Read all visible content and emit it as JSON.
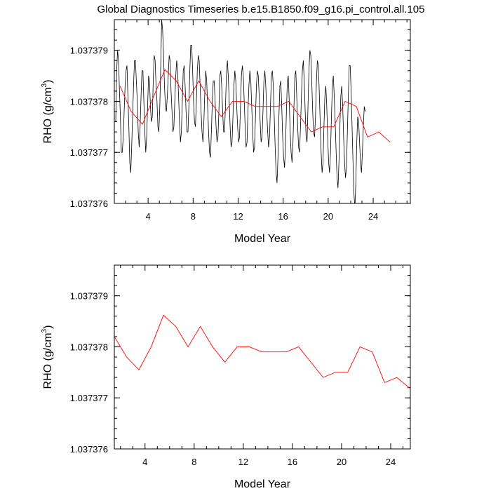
{
  "title": "Global Diagnostics Timeseries b.e15.B1850.f09_g16.pi_control.all.105",
  "chart_data": [
    {
      "type": "line",
      "xlabel": "Model Year",
      "ylabel_main": "RHO (g/cm",
      "ylabel_sup": "3",
      "ylabel_close": ")",
      "xlim": [
        1,
        27.3
      ],
      "ylim": [
        1.037376,
        1.0373796
      ],
      "xticks": [
        4,
        8,
        12,
        16,
        20,
        24
      ],
      "yticks": [
        1.037376,
        1.037377,
        1.037378,
        1.037379
      ],
      "ytick_labels": [
        "1.037376",
        "1.037377",
        "1.037378",
        "1.037379"
      ],
      "monthly_series": {
        "color": "#000000",
        "x_start": 1.04,
        "x_step": 0.0833333,
        "values": [
          1.0373776,
          1.0373776,
          1.0373786,
          1.037379,
          1.0373788,
          1.0373782,
          1.0373777,
          1.037377,
          1.037377,
          1.0373773,
          1.0373778,
          1.0373783,
          1.0373786,
          1.0373787,
          1.0373781,
          1.0373775,
          1.0373768,
          1.0373766,
          1.0373771,
          1.0373777,
          1.0373783,
          1.0373788,
          1.0373788,
          1.0373784,
          1.037378,
          1.0373774,
          1.0373771,
          1.0373775,
          1.0373781,
          1.0373786,
          1.0373786,
          1.037378,
          1.0373774,
          1.037377,
          1.0373773,
          1.0373779,
          1.0373785,
          1.0373784,
          1.0373779,
          1.0373776,
          1.0373777,
          1.0373784,
          1.0373789,
          1.0373788,
          1.0373783,
          1.037378,
          1.0373775,
          1.0373774,
          1.0373779,
          1.0373787,
          1.0373796,
          1.0373794,
          1.0373789,
          1.0373783,
          1.0373779,
          1.0373778,
          1.0373781,
          1.0373785,
          1.0373789,
          1.0373788,
          1.0373782,
          1.0373778,
          1.0373774,
          1.0373775,
          1.037378,
          1.0373785,
          1.0373788,
          1.0373786,
          1.0373781,
          1.0373776,
          1.0373772,
          1.0373774,
          1.037378,
          1.0373786,
          1.0373787,
          1.0373783,
          1.0373778,
          1.0373774,
          1.0373774,
          1.0373779,
          1.0373786,
          1.0373791,
          1.0373791,
          1.0373786,
          1.037378,
          1.0373776,
          1.0373775,
          1.037378,
          1.0373786,
          1.0373789,
          1.0373788,
          1.0373783,
          1.0373778,
          1.0373774,
          1.0373772,
          1.0373776,
          1.0373782,
          1.0373786,
          1.0373784,
          1.0373779,
          1.0373774,
          1.037377,
          1.0373769,
          1.0373774,
          1.037378,
          1.0373784,
          1.0373784,
          1.037378,
          1.0373775,
          1.0373772,
          1.0373773,
          1.0373778,
          1.0373785,
          1.0373786,
          1.0373783,
          1.0373778,
          1.0373774,
          1.0373774,
          1.0373779,
          1.0373785,
          1.0373788,
          1.0373785,
          1.037378,
          1.0373775,
          1.0373771,
          1.0373772,
          1.0373777,
          1.0373783,
          1.0373786,
          1.0373784,
          1.0373779,
          1.0373775,
          1.0373772,
          1.0373773,
          1.0373779,
          1.0373785,
          1.0373787,
          1.0373785,
          1.037378,
          1.0373775,
          1.0373771,
          1.0373772,
          1.0373778,
          1.0373783,
          1.0373786,
          1.0373784,
          1.0373779,
          1.0373774,
          1.037377,
          1.0373771,
          1.0373777,
          1.0373783,
          1.0373786,
          1.0373785,
          1.0373781,
          1.0373776,
          1.0373772,
          1.0373773,
          1.0373778,
          1.0373784,
          1.0373786,
          1.0373783,
          1.0373778,
          1.0373774,
          1.0373771,
          1.0373773,
          1.0373779,
          1.0373785,
          1.0373786,
          1.0373783,
          1.0373777,
          1.0373771,
          1.0373766,
          1.0373764,
          1.0373769,
          1.0373777,
          1.0373783,
          1.0373784,
          1.0373779,
          1.0373773,
          1.0373769,
          1.0373767,
          1.0373771,
          1.0373778,
          1.0373784,
          1.0373785,
          1.037378,
          1.0373774,
          1.037377,
          1.0373768,
          1.0373772,
          1.0373779,
          1.0373785,
          1.0373786,
          1.0373781,
          1.0373775,
          1.0373771,
          1.037377,
          1.0373775,
          1.0373781,
          1.0373786,
          1.0373788,
          1.0373784,
          1.0373778,
          1.0373773,
          1.0373772,
          1.0373779,
          1.0373786,
          1.037379,
          1.0373789,
          1.0373784,
          1.0373778,
          1.0373774,
          1.0373773,
          1.0373777,
          1.0373784,
          1.0373788,
          1.0373787,
          1.0373782,
          1.0373776,
          1.037377,
          1.0373766,
          1.0373768,
          1.0373775,
          1.0373781,
          1.0373783,
          1.0373779,
          1.0373773,
          1.0373768,
          1.0373766,
          1.037377,
          1.0373777,
          1.0373783,
          1.0373785,
          1.0373781,
          1.0373776,
          1.037377,
          1.0373765,
          1.0373763,
          1.0373768,
          1.0373775,
          1.0373781,
          1.0373783,
          1.0373779,
          1.0373773,
          1.0373768,
          1.0373765,
          1.0373767,
          1.0373774,
          1.0373781,
          1.0373787,
          1.0373787,
          1.0373782,
          1.0373775,
          1.0373768,
          1.0373762,
          1.0373759,
          1.0373764,
          1.0373772,
          1.0373777,
          1.0373776,
          1.0373772,
          1.0373768,
          1.0373766,
          1.037377,
          1.0373775,
          1.0373779,
          1.0373778
        ]
      },
      "annual_series": {
        "color": "#ff0000",
        "x": [
          1.5,
          2.5,
          3.5,
          4.5,
          5.5,
          6.5,
          7.5,
          8.5,
          9.5,
          10.5,
          11.5,
          12.5,
          13.5,
          14.5,
          15.5,
          16.5,
          17.5,
          18.5,
          19.5,
          20.5,
          21.5,
          22.5,
          23.5,
          24.5,
          25.5
        ],
        "y": [
          1.0373783,
          1.0373778,
          1.03737755,
          1.0373781,
          1.03737862,
          1.0373784,
          1.037378,
          1.0373784,
          1.037378,
          1.0373777,
          1.037378,
          1.037378,
          1.0373779,
          1.0373779,
          1.0373779,
          1.037378,
          1.0373777,
          1.0373774,
          1.0373775,
          1.0373775,
          1.037378,
          1.0373779,
          1.0373773,
          1.0373774,
          1.0373772
        ]
      }
    },
    {
      "type": "line",
      "xlabel": "Model Year",
      "ylabel_main": "RHO (g/cm",
      "ylabel_sup": "3",
      "ylabel_close": ")",
      "xlim": [
        1.5,
        25.6
      ],
      "ylim": [
        1.037376,
        1.0373796
      ],
      "xticks": [
        4,
        8,
        12,
        16,
        20,
        24
      ],
      "yticks": [
        1.037376,
        1.037377,
        1.037378,
        1.037379
      ],
      "ytick_labels": [
        "1.037376",
        "1.037377",
        "1.037378",
        "1.037379"
      ],
      "annual_series": {
        "color": "#ff0000",
        "x": [
          1.5,
          2.5,
          3.5,
          4.5,
          5.5,
          6.5,
          7.5,
          8.5,
          9.5,
          10.5,
          11.5,
          12.5,
          13.5,
          14.5,
          15.5,
          16.5,
          17.5,
          18.5,
          19.5,
          20.5,
          21.5,
          22.5,
          23.5,
          24.5,
          25.5
        ],
        "y": [
          1.0373782,
          1.0373778,
          1.03737755,
          1.037378,
          1.03737862,
          1.0373784,
          1.037378,
          1.0373784,
          1.037378,
          1.0373777,
          1.037378,
          1.037378,
          1.0373779,
          1.0373779,
          1.0373779,
          1.037378,
          1.0373777,
          1.0373774,
          1.0373775,
          1.0373775,
          1.037378,
          1.0373779,
          1.0373773,
          1.0373774,
          1.0373772
        ]
      }
    }
  ]
}
